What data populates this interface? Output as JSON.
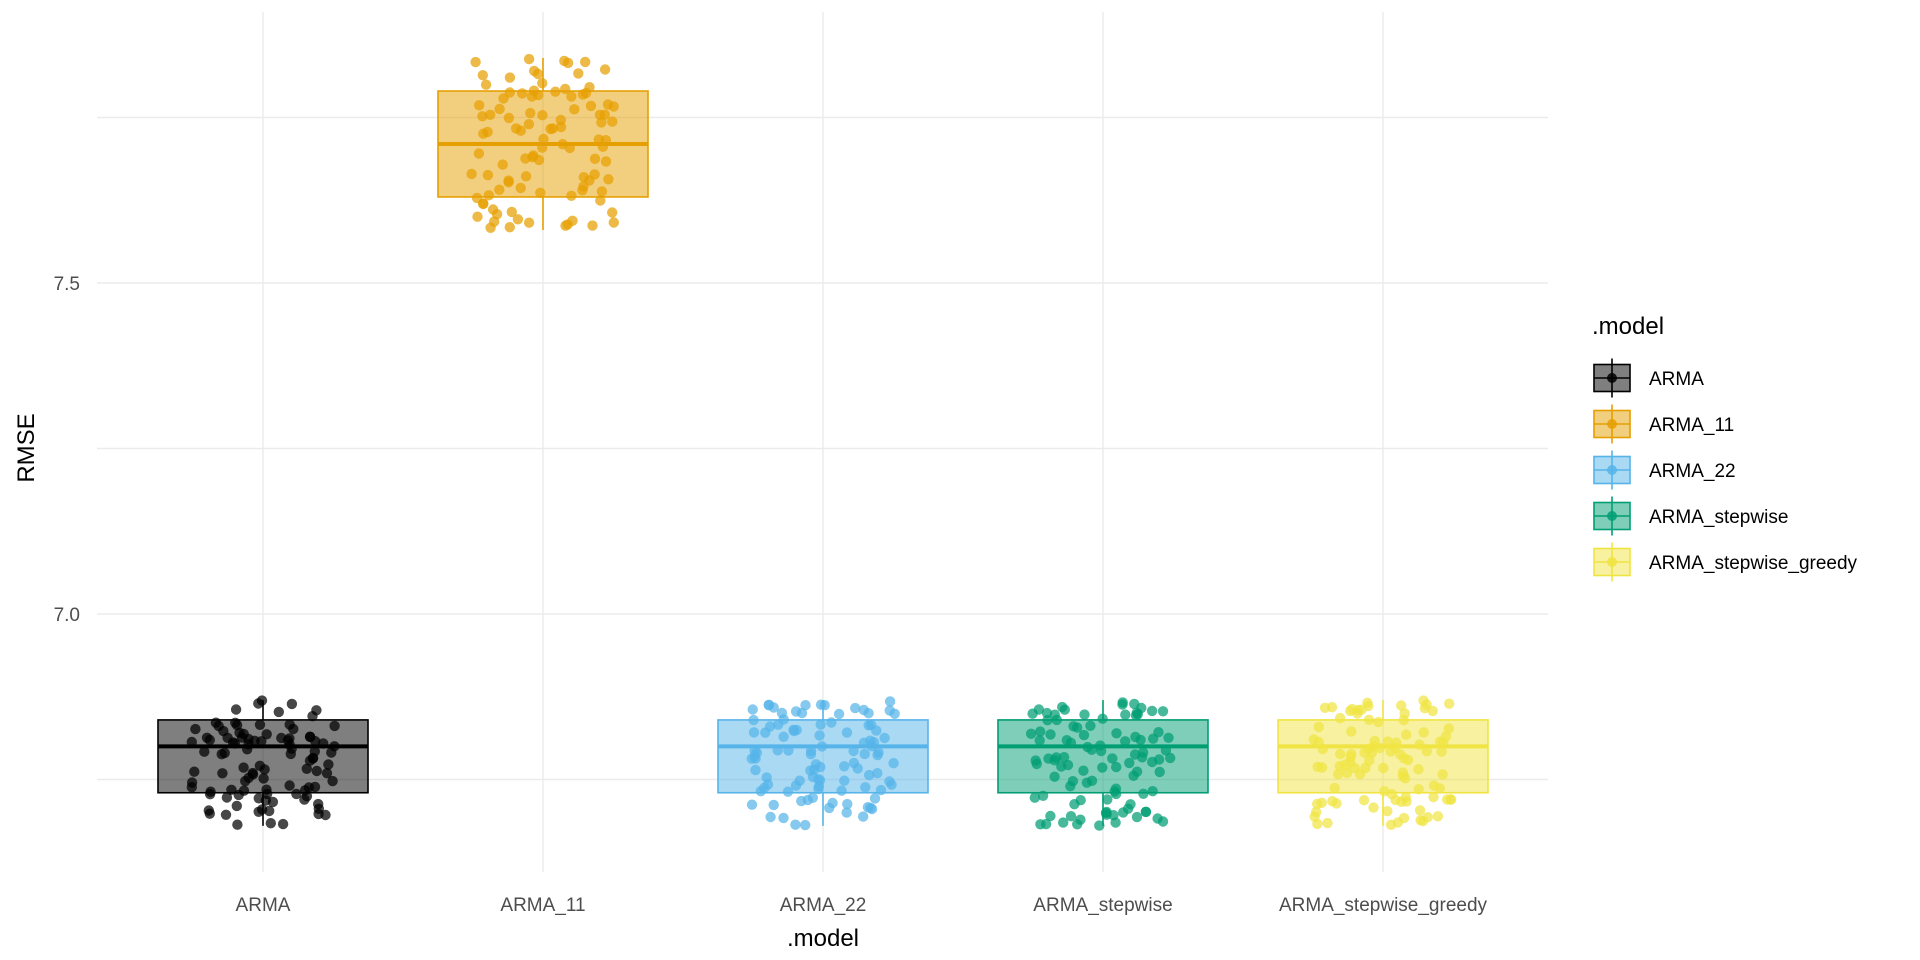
{
  "chart_data": {
    "type": "box",
    "xlabel": ".model",
    "ylabel": "RMSE",
    "categories": [
      "ARMA",
      "ARMA_11",
      "ARMA_22",
      "ARMA_stepwise",
      "ARMA_stepwise_greedy"
    ],
    "ylim": [
      6.62,
      7.82
    ],
    "yticks": [
      7.0,
      7.5
    ],
    "ytick_labels": [
      "7.0",
      "7.5"
    ],
    "grid": true,
    "legend": {
      "title": ".model",
      "position": "right"
    },
    "series": [
      {
        "name": "ARMA",
        "color": "#000000",
        "fill_alpha": 0.5,
        "box": {
          "min": 6.68,
          "q1": 6.73,
          "median": 6.8,
          "q3": 6.84,
          "max": 6.87
        },
        "points_range": [
          6.68,
          6.87
        ],
        "n_points": 100
      },
      {
        "name": "ARMA_11",
        "color": "#E69F00",
        "fill_alpha": 0.5,
        "box": {
          "min": 7.58,
          "q1": 7.63,
          "median": 7.71,
          "q3": 7.79,
          "max": 7.84
        },
        "points_range": [
          7.58,
          7.84
        ],
        "n_points": 100
      },
      {
        "name": "ARMA_22",
        "color": "#56B4E9",
        "fill_alpha": 0.5,
        "box": {
          "min": 6.68,
          "q1": 6.73,
          "median": 6.8,
          "q3": 6.84,
          "max": 6.87
        },
        "points_range": [
          6.68,
          6.87
        ],
        "n_points": 100
      },
      {
        "name": "ARMA_stepwise",
        "color": "#009E73",
        "fill_alpha": 0.5,
        "box": {
          "min": 6.68,
          "q1": 6.73,
          "median": 6.8,
          "q3": 6.84,
          "max": 6.87
        },
        "points_range": [
          6.68,
          6.87
        ],
        "n_points": 100
      },
      {
        "name": "ARMA_stepwise_greedy",
        "color": "#F0E442",
        "fill_alpha": 0.5,
        "box": {
          "min": 6.68,
          "q1": 6.73,
          "median": 6.8,
          "q3": 6.84,
          "max": 6.87
        },
        "points_range": [
          6.68,
          6.87
        ],
        "n_points": 100
      }
    ]
  }
}
